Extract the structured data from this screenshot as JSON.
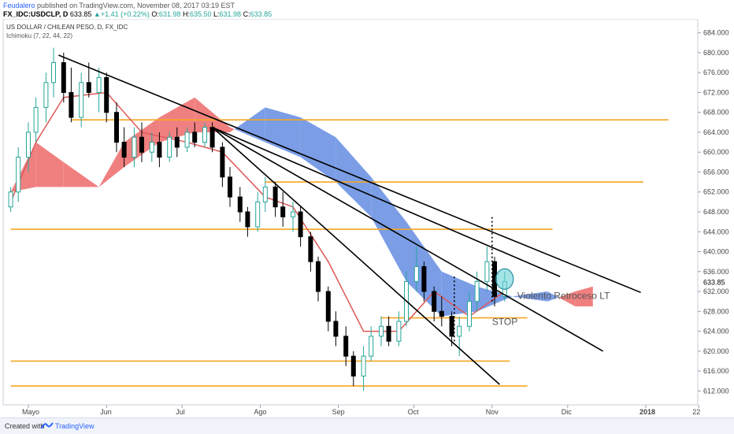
{
  "header": {
    "author": "Feudalero",
    "published_text": "published on TradingView.com, November 08, 2017 03:19 EST",
    "symbol": "FX_IDC:USDCLP, D",
    "last": "633.85",
    "change": "+1.41 (+0.22%)",
    "ohlc": [
      {
        "label": "O:",
        "value": "631.98"
      },
      {
        "label": "H:",
        "value": "635.50"
      },
      {
        "label": "L:",
        "value": "631.98"
      },
      {
        "label": "C:",
        "value": "633.85"
      }
    ]
  },
  "chart_data": {
    "type": "candlestick",
    "title": "US DOLLAR / CHILEAN PESO, D, FX_IDC",
    "indicator": "Ichimoku (7, 22, 44, 22)",
    "ylim": [
      610,
      686
    ],
    "y_ticks": [
      612,
      616,
      620,
      624,
      628,
      632,
      636,
      640,
      644,
      648,
      652,
      656,
      660,
      664,
      668,
      672,
      676,
      680,
      684
    ],
    "x_labels": [
      "Mayo",
      "Jun",
      "Jul",
      "Ago",
      "Sep",
      "Oct",
      "Nov",
      "Dic",
      "2018",
      "22"
    ],
    "last_price": "633.85",
    "colors": {
      "up": "#26a69a",
      "down": "#000000",
      "cloud_bull": "#7a9de6",
      "cloud_bear": "#f08080",
      "base_line": "#e05858",
      "levels": "#f5a623",
      "trendlines": "#000000",
      "highlight": "#67d1d6"
    },
    "price_series": [
      {
        "date": "2017-04-24",
        "o": 649,
        "h": 653,
        "l": 648,
        "c": 652
      },
      {
        "date": "2017-04-27",
        "o": 652,
        "h": 661,
        "l": 650,
        "c": 659
      },
      {
        "date": "2017-05-01",
        "o": 659,
        "h": 666,
        "l": 656,
        "c": 664
      },
      {
        "date": "2017-05-04",
        "o": 664,
        "h": 671,
        "l": 662,
        "c": 669
      },
      {
        "date": "2017-05-08",
        "o": 669,
        "h": 676,
        "l": 666,
        "c": 674
      },
      {
        "date": "2017-05-11",
        "o": 674,
        "h": 681,
        "l": 671,
        "c": 678
      },
      {
        "date": "2017-05-15",
        "o": 678,
        "h": 680,
        "l": 670,
        "c": 672
      },
      {
        "date": "2017-05-18",
        "o": 672,
        "h": 677,
        "l": 666,
        "c": 667
      },
      {
        "date": "2017-05-22",
        "o": 667,
        "h": 676,
        "l": 665,
        "c": 674
      },
      {
        "date": "2017-05-25",
        "o": 674,
        "h": 678,
        "l": 671,
        "c": 672
      },
      {
        "date": "2017-05-29",
        "o": 672,
        "h": 677,
        "l": 668,
        "c": 675
      },
      {
        "date": "2017-06-01",
        "o": 675,
        "h": 676,
        "l": 666,
        "c": 668
      },
      {
        "date": "2017-06-05",
        "o": 668,
        "h": 670,
        "l": 660,
        "c": 662
      },
      {
        "date": "2017-06-08",
        "o": 662,
        "h": 665,
        "l": 657,
        "c": 659
      },
      {
        "date": "2017-06-12",
        "o": 659,
        "h": 665,
        "l": 657,
        "c": 663
      },
      {
        "date": "2017-06-15",
        "o": 663,
        "h": 666,
        "l": 658,
        "c": 660
      },
      {
        "date": "2017-06-19",
        "o": 660,
        "h": 664,
        "l": 658,
        "c": 662
      },
      {
        "date": "2017-06-22",
        "o": 662,
        "h": 664,
        "l": 657,
        "c": 659
      },
      {
        "date": "2017-06-26",
        "o": 659,
        "h": 664,
        "l": 658,
        "c": 663
      },
      {
        "date": "2017-06-29",
        "o": 663,
        "h": 665,
        "l": 659,
        "c": 661
      },
      {
        "date": "2017-07-03",
        "o": 661,
        "h": 665,
        "l": 660,
        "c": 664
      },
      {
        "date": "2017-07-06",
        "o": 664,
        "h": 666,
        "l": 661,
        "c": 662
      },
      {
        "date": "2017-07-10",
        "o": 662,
        "h": 666,
        "l": 661,
        "c": 665
      },
      {
        "date": "2017-07-13",
        "o": 665,
        "h": 666,
        "l": 660,
        "c": 661
      },
      {
        "date": "2017-07-17",
        "o": 661,
        "h": 662,
        "l": 653,
        "c": 655
      },
      {
        "date": "2017-07-20",
        "o": 655,
        "h": 657,
        "l": 649,
        "c": 651
      },
      {
        "date": "2017-07-24",
        "o": 651,
        "h": 653,
        "l": 646,
        "c": 648
      },
      {
        "date": "2017-07-27",
        "o": 648,
        "h": 649,
        "l": 643,
        "c": 645
      },
      {
        "date": "2017-07-31",
        "o": 645,
        "h": 652,
        "l": 644,
        "c": 650
      },
      {
        "date": "2017-08-03",
        "o": 650,
        "h": 655,
        "l": 648,
        "c": 653
      },
      {
        "date": "2017-08-07",
        "o": 653,
        "h": 654,
        "l": 647,
        "c": 649
      },
      {
        "date": "2017-08-10",
        "o": 649,
        "h": 652,
        "l": 645,
        "c": 647
      },
      {
        "date": "2017-08-14",
        "o": 647,
        "h": 650,
        "l": 644,
        "c": 648
      },
      {
        "date": "2017-08-17",
        "o": 648,
        "h": 649,
        "l": 641,
        "c": 643
      },
      {
        "date": "2017-08-21",
        "o": 643,
        "h": 644,
        "l": 636,
        "c": 638
      },
      {
        "date": "2017-08-24",
        "o": 638,
        "h": 639,
        "l": 630,
        "c": 632
      },
      {
        "date": "2017-08-28",
        "o": 632,
        "h": 633,
        "l": 624,
        "c": 626
      },
      {
        "date": "2017-08-31",
        "o": 626,
        "h": 628,
        "l": 621,
        "c": 623
      },
      {
        "date": "2017-09-04",
        "o": 623,
        "h": 625,
        "l": 617,
        "c": 619
      },
      {
        "date": "2017-09-07",
        "o": 619,
        "h": 620,
        "l": 613,
        "c": 615
      },
      {
        "date": "2017-09-11",
        "o": 615,
        "h": 621,
        "l": 612,
        "c": 619
      },
      {
        "date": "2017-09-14",
        "o": 619,
        "h": 625,
        "l": 618,
        "c": 623
      },
      {
        "date": "2017-09-18",
        "o": 623,
        "h": 627,
        "l": 621,
        "c": 625
      },
      {
        "date": "2017-09-21",
        "o": 625,
        "h": 627,
        "l": 621,
        "c": 622
      },
      {
        "date": "2017-09-25",
        "o": 622,
        "h": 628,
        "l": 621,
        "c": 626
      },
      {
        "date": "2017-09-28",
        "o": 626,
        "h": 636,
        "l": 625,
        "c": 634
      },
      {
        "date": "2017-10-02",
        "o": 634,
        "h": 641,
        "l": 632,
        "c": 637
      },
      {
        "date": "2017-10-05",
        "o": 637,
        "h": 638,
        "l": 630,
        "c": 632
      },
      {
        "date": "2017-10-09",
        "o": 632,
        "h": 633,
        "l": 626,
        "c": 628
      },
      {
        "date": "2017-10-12",
        "o": 628,
        "h": 631,
        "l": 625,
        "c": 627
      },
      {
        "date": "2017-10-16",
        "o": 627,
        "h": 628,
        "l": 621,
        "c": 623
      },
      {
        "date": "2017-10-19",
        "o": 623,
        "h": 627,
        "l": 619,
        "c": 625
      },
      {
        "date": "2017-10-23",
        "o": 625,
        "h": 632,
        "l": 624,
        "c": 630
      },
      {
        "date": "2017-10-26",
        "o": 630,
        "h": 636,
        "l": 628,
        "c": 634
      },
      {
        "date": "2017-10-30",
        "o": 634,
        "h": 641,
        "l": 632,
        "c": 638
      },
      {
        "date": "2017-11-02",
        "o": 638,
        "h": 639,
        "l": 629,
        "c": 631
      },
      {
        "date": "2017-11-06",
        "o": 631,
        "h": 636,
        "l": 630,
        "c": 634
      }
    ],
    "base_line": [
      {
        "date": "2017-04-24",
        "y": 650
      },
      {
        "date": "2017-05-04",
        "y": 662
      },
      {
        "date": "2017-05-15",
        "y": 671
      },
      {
        "date": "2017-06-01",
        "y": 672
      },
      {
        "date": "2017-06-15",
        "y": 664
      },
      {
        "date": "2017-07-03",
        "y": 662
      },
      {
        "date": "2017-07-17",
        "y": 660
      },
      {
        "date": "2017-08-03",
        "y": 651
      },
      {
        "date": "2017-08-14",
        "y": 649
      },
      {
        "date": "2017-08-28",
        "y": 638
      },
      {
        "date": "2017-09-11",
        "y": 624
      },
      {
        "date": "2017-09-25",
        "y": 624
      },
      {
        "date": "2017-10-09",
        "y": 632
      },
      {
        "date": "2017-10-23",
        "y": 627
      },
      {
        "date": "2017-11-06",
        "y": 632
      }
    ],
    "cloud": [
      {
        "date": "2017-04-24",
        "a": 652,
        "b": 652
      },
      {
        "date": "2017-05-04",
        "a": 653,
        "b": 662
      },
      {
        "date": "2017-05-15",
        "a": 653,
        "b": 658
      },
      {
        "date": "2017-05-29",
        "a": 653,
        "b": 653
      },
      {
        "date": "2017-06-08",
        "a": 657,
        "b": 662
      },
      {
        "date": "2017-06-22",
        "a": 662,
        "b": 667
      },
      {
        "date": "2017-07-06",
        "a": 664,
        "b": 671
      },
      {
        "date": "2017-07-20",
        "a": 664,
        "b": 665
      },
      {
        "date": "2017-08-03",
        "a": 669,
        "b": 662
      },
      {
        "date": "2017-08-17",
        "a": 667,
        "b": 659
      },
      {
        "date": "2017-08-31",
        "a": 663,
        "b": 654
      },
      {
        "date": "2017-09-14",
        "a": 655,
        "b": 647
      },
      {
        "date": "2017-09-28",
        "a": 646,
        "b": 634
      },
      {
        "date": "2017-10-12",
        "a": 636,
        "b": 627
      },
      {
        "date": "2017-10-26",
        "a": 633,
        "b": 628
      },
      {
        "date": "2017-11-09",
        "a": 631,
        "b": 631
      },
      {
        "date": "2017-11-23",
        "a": 632,
        "b": 630
      },
      {
        "date": "2017-12-04",
        "a": 629,
        "b": 632
      },
      {
        "date": "2017-12-11",
        "a": 629,
        "b": 633
      }
    ],
    "horizontal_levels": [
      {
        "y": 666.5,
        "from": "2017-05-18",
        "to": "2018-01-10"
      },
      {
        "y": 654.0,
        "from": "2017-08-03",
        "to": "2017-12-31"
      },
      {
        "y": 644.5,
        "from": "2017-04-24",
        "to": "2017-11-25"
      },
      {
        "y": 626.7,
        "from": "2017-09-18",
        "to": "2017-11-15"
      },
      {
        "y": 618.0,
        "from": "2017-04-24",
        "to": "2017-11-08"
      },
      {
        "y": 613.0,
        "from": "2017-04-24",
        "to": "2017-11-15"
      }
    ],
    "trendlines": [
      {
        "x1": "2017-05-13",
        "y1": 679.5,
        "x2": "2017-12-30",
        "y2": 631.8
      },
      {
        "x1": "2017-07-13",
        "y1": 665.0,
        "x2": "2017-11-04",
        "y2": 613.3
      },
      {
        "x1": "2017-07-13",
        "y1": 665.0,
        "x2": "2017-12-15",
        "y2": 620.0
      },
      {
        "x1": "2017-07-13",
        "y1": 665.0,
        "x2": "2017-11-28",
        "y2": 635.0
      }
    ],
    "dotted_verticals": [
      {
        "date": "2017-10-17",
        "y1": 622,
        "y2": 635
      },
      {
        "date": "2017-11-01",
        "y1": 630,
        "y2": 647
      }
    ],
    "highlight": {
      "date": "2017-11-06",
      "y": 634.5
    },
    "annotations": {
      "label_lt": "Violento Retroceso LT",
      "label_stop": "STOP",
      "lt_at": {
        "date": "2017-11-11",
        "y": 630.5
      },
      "stop_at": {
        "date": "2017-11-01",
        "y": 625.3
      }
    }
  },
  "footer": {
    "created_with": "Created with",
    "brand": "TradingView"
  }
}
